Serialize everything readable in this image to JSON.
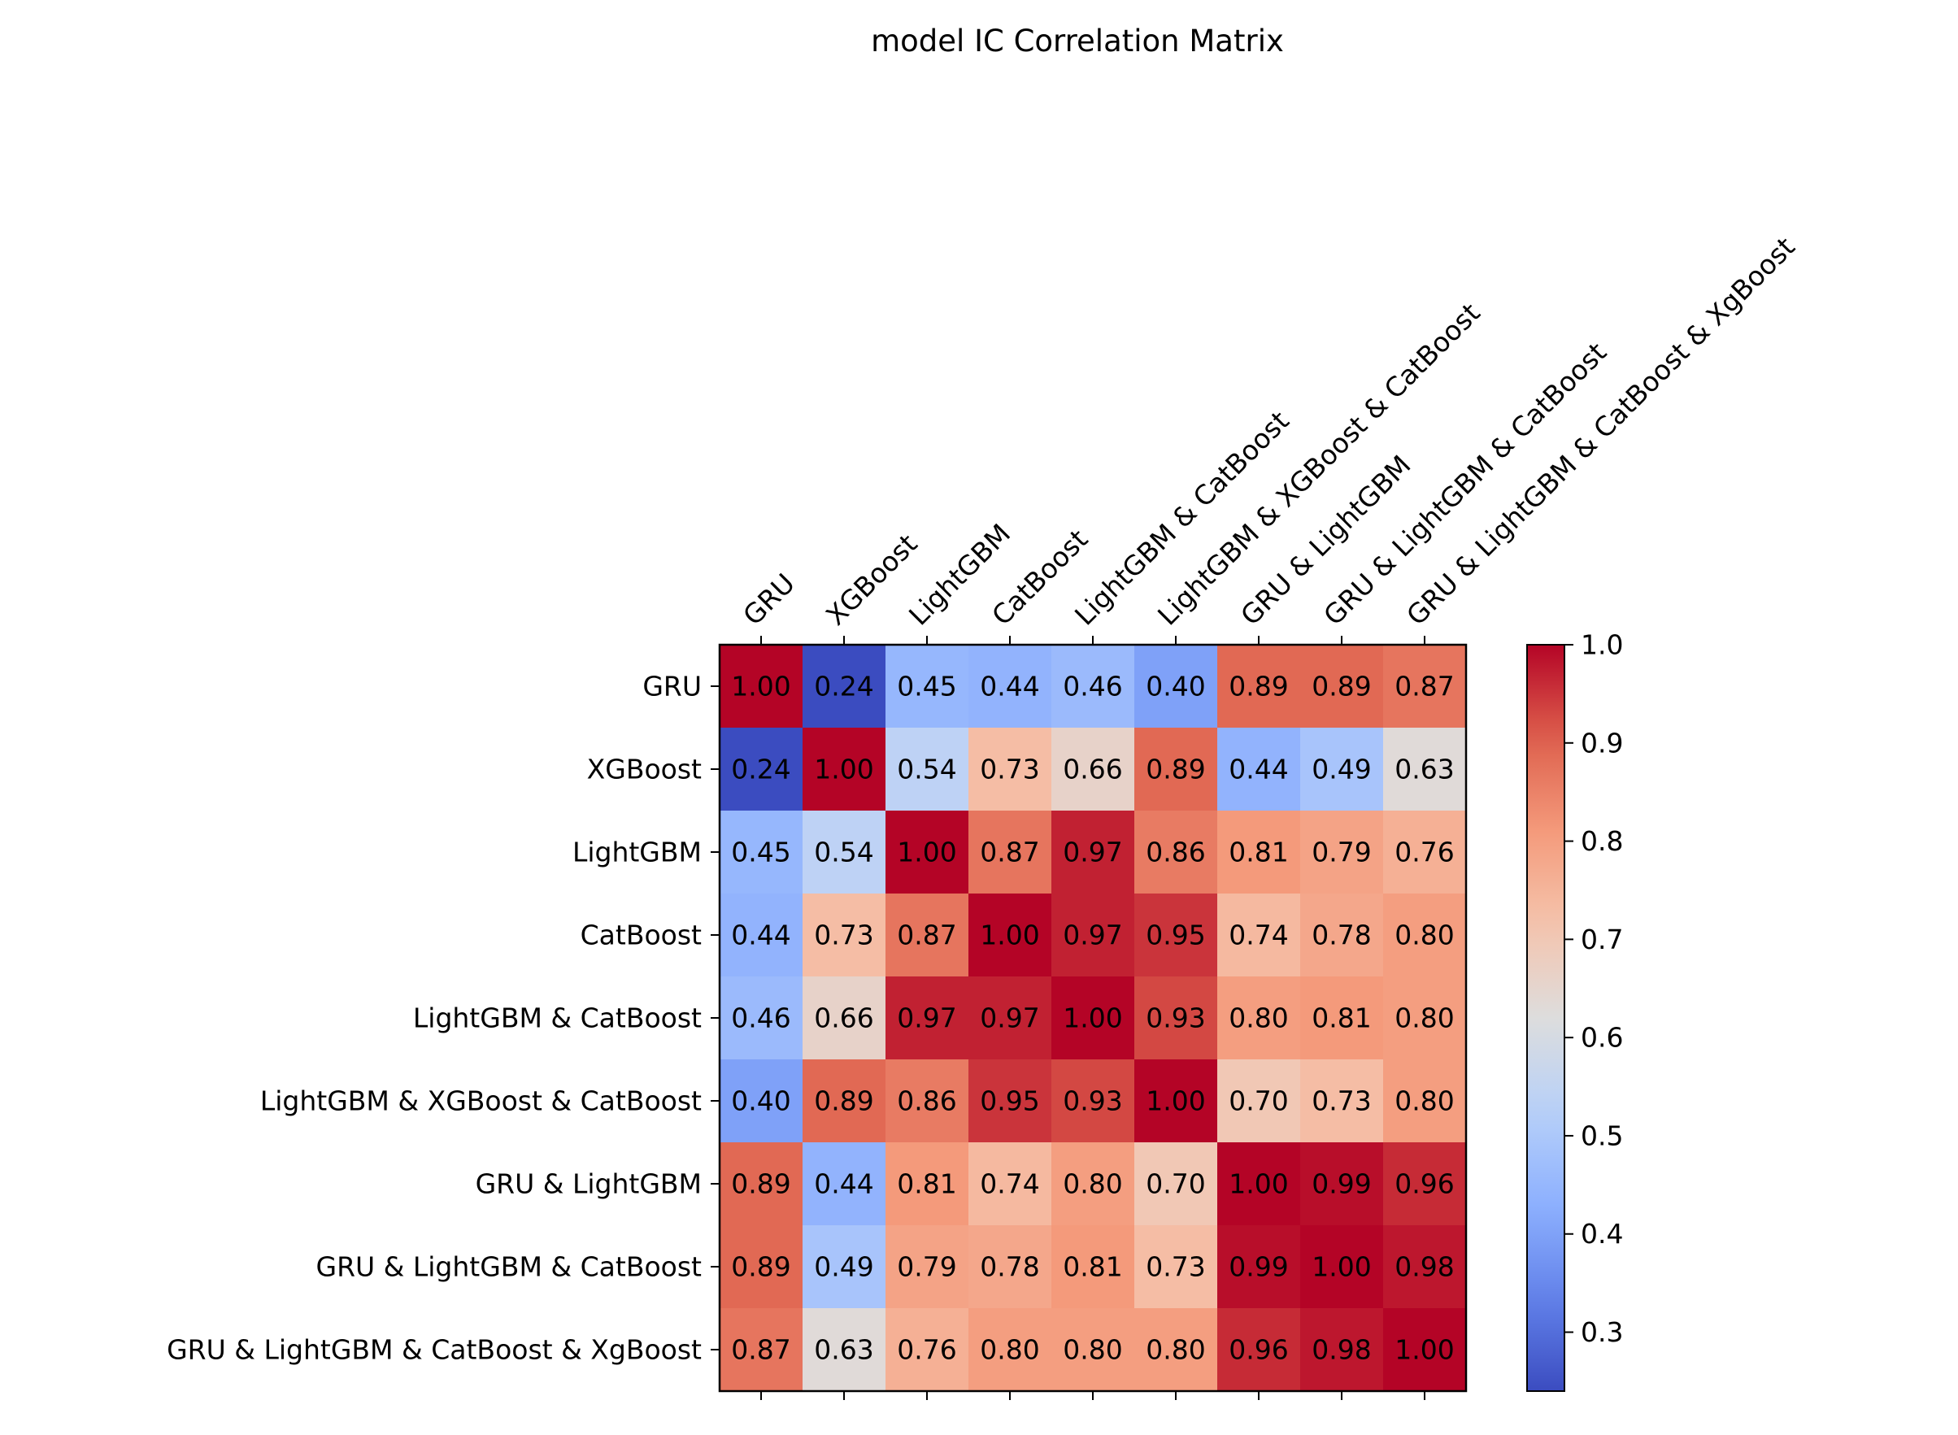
{
  "chart_data": {
    "type": "heatmap",
    "title": "model IC Correlation Matrix",
    "xlabel": "",
    "ylabel": "",
    "labels": [
      "GRU",
      "XGBoost",
      "LightGBM",
      "CatBoost",
      "LightGBM & CatBoost",
      "LightGBM & XGBoost & CatBoost",
      "GRU & LightGBM",
      "GRU & LightGBM & CatBoost",
      "GRU & LightGBM & CatBoost & XgBoost"
    ],
    "x_labels_position": "top",
    "x_labels_rotation": "45 degrees",
    "values": [
      [
        1.0,
        0.24,
        0.45,
        0.44,
        0.46,
        0.4,
        0.89,
        0.89,
        0.87
      ],
      [
        0.24,
        1.0,
        0.54,
        0.73,
        0.66,
        0.89,
        0.44,
        0.49,
        0.63
      ],
      [
        0.45,
        0.54,
        1.0,
        0.87,
        0.97,
        0.86,
        0.81,
        0.79,
        0.76
      ],
      [
        0.44,
        0.73,
        0.87,
        1.0,
        0.97,
        0.95,
        0.74,
        0.78,
        0.8
      ],
      [
        0.46,
        0.66,
        0.97,
        0.97,
        1.0,
        0.93,
        0.8,
        0.81,
        0.8
      ],
      [
        0.4,
        0.89,
        0.86,
        0.95,
        0.93,
        1.0,
        0.7,
        0.73,
        0.8
      ],
      [
        0.89,
        0.44,
        0.81,
        0.74,
        0.8,
        0.7,
        1.0,
        0.99,
        0.96
      ],
      [
        0.89,
        0.49,
        0.79,
        0.78,
        0.81,
        0.73,
        0.99,
        1.0,
        0.98
      ],
      [
        0.87,
        0.63,
        0.76,
        0.8,
        0.8,
        0.8,
        0.96,
        0.98,
        1.0
      ]
    ],
    "value_format": "2 decimals",
    "colormap": "coolwarm",
    "color_range": [
      0.24,
      1.0
    ],
    "colorbar": {
      "position": "right",
      "ticks": [
        0.3,
        0.4,
        0.5,
        0.6,
        0.7,
        0.8,
        0.9,
        1.0
      ],
      "tick_labels": [
        "0.3",
        "0.4",
        "0.5",
        "0.6",
        "0.7",
        "0.8",
        "0.9",
        "1.0"
      ]
    },
    "grid": false
  }
}
